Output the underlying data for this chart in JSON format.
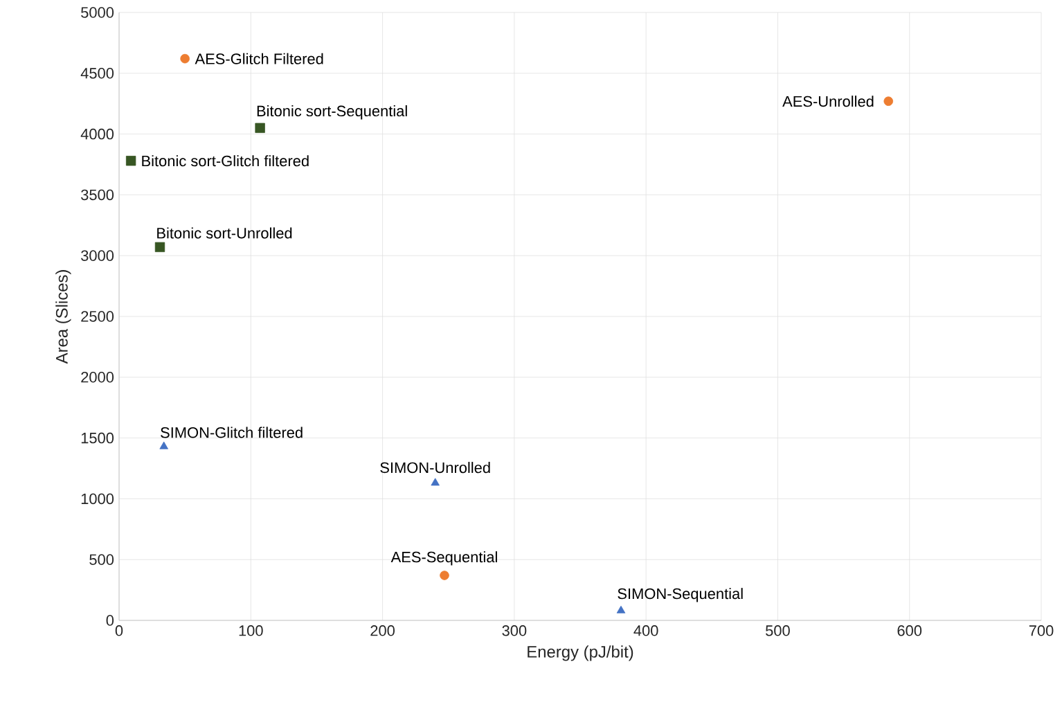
{
  "chart_data": {
    "type": "scatter",
    "xlabel": "Energy (pJ/bit)",
    "ylabel": "Area (Slices)",
    "xlim": [
      0,
      700
    ],
    "xticks": [
      0,
      100,
      200,
      300,
      400,
      500,
      600,
      700
    ],
    "ylim": [
      0,
      5000
    ],
    "yticks": [
      0,
      500,
      1000,
      1500,
      2000,
      2500,
      3000,
      3500,
      4000,
      4500,
      5000
    ],
    "grid": true,
    "series": [
      {
        "color": "#ed7d31",
        "marker": "circle",
        "x": [
          50,
          584,
          247
        ],
        "values": [
          4620,
          4270,
          370
        ]
      },
      {
        "color": "#375623",
        "marker": "square",
        "x": [
          107,
          9,
          31
        ],
        "values": [
          4050,
          3780,
          3070
        ]
      },
      {
        "color": "#4472c4",
        "marker": "triangle",
        "x": [
          34,
          240,
          381
        ],
        "values": [
          1430,
          1130,
          80
        ]
      }
    ],
    "annotations": [
      {
        "text": "AES-Glitch Filtered",
        "x": 50,
        "y": 4620
      },
      {
        "text": "Bitonic sort-Sequential",
        "x": 107,
        "y": 4050
      },
      {
        "text": "Bitonic sort-Glitch filtered",
        "x": 9,
        "y": 3780
      },
      {
        "text": "Bitonic sort-Unrolled",
        "x": 31,
        "y": 3070
      },
      {
        "text": "AES-Unrolled",
        "x": 584,
        "y": 4270
      },
      {
        "text": "SIMON-Glitch filtered",
        "x": 34,
        "y": 1430
      },
      {
        "text": "SIMON-Unrolled",
        "x": 240,
        "y": 1130
      },
      {
        "text": "AES-Sequential",
        "x": 247,
        "y": 370
      },
      {
        "text": "SIMON-Sequential",
        "x": 381,
        "y": 80
      }
    ]
  }
}
